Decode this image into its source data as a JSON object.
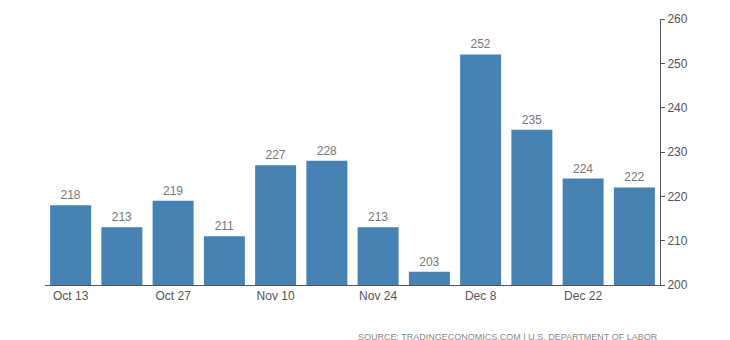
{
  "chart_data": {
    "type": "bar",
    "categories": [
      "Oct 13",
      null,
      "Oct 27",
      null,
      "Nov 10",
      null,
      "Nov 24",
      null,
      "Dec 8",
      null,
      "Dec 22",
      null
    ],
    "values": [
      218,
      213,
      219,
      211,
      227,
      228,
      213,
      203,
      252,
      235,
      224,
      222
    ],
    "color": "#4682b4",
    "ylim": [
      200,
      260
    ],
    "yticks": [
      200,
      210,
      220,
      230,
      240,
      250,
      260
    ],
    "grid": false,
    "data_labels": true,
    "source": "SOURCE: TRADINGECONOMICS.COM | U.S. DEPARTMENT OF LABOR"
  }
}
